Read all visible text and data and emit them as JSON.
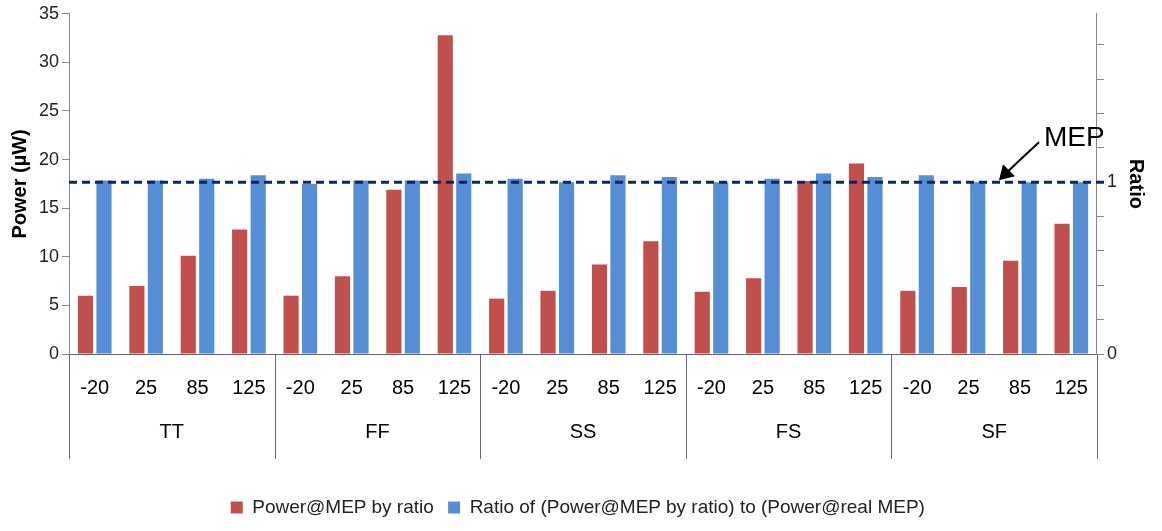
{
  "chart_data": {
    "type": "bar",
    "ylabel": "Power (µW)",
    "y2label": "Ratio",
    "categories": [
      "-20",
      "25",
      "85",
      "125",
      "-20",
      "25",
      "85",
      "125",
      "-20",
      "25",
      "85",
      "125",
      "-20",
      "25",
      "85",
      "125",
      "-20",
      "25",
      "85",
      "125"
    ],
    "series": [
      {
        "name": "Power@MEP by ratio",
        "color": "#c0504d",
        "values": [
          6,
          7,
          10.1,
          12.8,
          6,
          8,
          16.9,
          32.8,
          5.7,
          6.5,
          9.2,
          11.6,
          6.4,
          7.8,
          17.8,
          19.6,
          6.5,
          6.9,
          9.6,
          13.4
        ]
      },
      {
        "name": "Ratio of (Power@MEP by ratio) to (Power@real MEP)",
        "color": "#558ed5",
        "axis": "y2",
        "values": [
          1.01,
          1.01,
          1.02,
          1.04,
          0.99,
          1.01,
          1.01,
          1.05,
          1.02,
          1.0,
          1.04,
          1.03,
          1.0,
          1.02,
          1.05,
          1.03,
          1.04,
          1.0,
          1.0,
          1.0
        ]
      }
    ],
    "ylim": [
      0,
      35
    ],
    "yticks": [
      0,
      5,
      10,
      15,
      20,
      25,
      30,
      35
    ],
    "y2lim": [
      0,
      1.98
    ],
    "y2ticks": [
      0,
      {
        "value": 0.2,
        "label": null
      },
      {
        "value": 0.4,
        "label": null
      },
      {
        "value": 0.6,
        "label": null
      },
      {
        "value": 0.8,
        "label": null
      },
      1,
      {
        "value": 1.2,
        "label": null
      },
      {
        "value": 1.4,
        "label": null
      },
      {
        "value": 1.6,
        "label": null
      },
      {
        "value": 1.8,
        "label": null
      }
    ],
    "ref_lines": [
      {
        "axis": "y2",
        "value": 1,
        "label": "MEP",
        "color": "#0f2560",
        "line_style": "dashed"
      }
    ],
    "annotations": [
      "TT",
      "FF",
      "SS",
      "FS",
      "SF"
    ],
    "grid": false,
    "legend": "bottom"
  }
}
